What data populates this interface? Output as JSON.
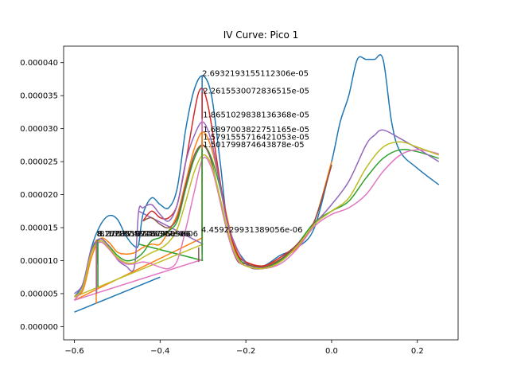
{
  "chart_data": {
    "type": "line",
    "title": "IV Curve: Pico 1",
    "xlabel": "",
    "ylabel": "",
    "xlim": [
      -0.625,
      0.295
    ],
    "ylim": [
      -2e-06,
      4.25e-05
    ],
    "grid": false,
    "legend": "none",
    "x_ticks": [
      "−0.6",
      "−0.4",
      "−0.2",
      "0.0",
      "0.2"
    ],
    "x_tick_values": [
      -0.6,
      -0.4,
      -0.2,
      0.0,
      0.2
    ],
    "y_ticks": [
      "0.000000",
      "0.000005",
      "0.000010",
      "0.000015",
      "0.000020",
      "0.000025",
      "0.000030",
      "0.000035",
      "0.000040"
    ],
    "y_tick_values": [
      0,
      5e-06,
      1e-05,
      1.5e-05,
      2e-05,
      2.5e-05,
      3e-05,
      3.5e-05,
      4e-05
    ],
    "series": [
      {
        "color": "#1f77b4",
        "x": [
          -0.6,
          -0.58,
          -0.56,
          -0.54,
          -0.52,
          -0.5,
          -0.48,
          -0.46,
          -0.45,
          -0.44,
          -0.42,
          -0.4,
          -0.38,
          -0.36,
          -0.34,
          -0.32,
          -0.3,
          -0.28,
          -0.26,
          -0.24,
          -0.2,
          -0.16,
          -0.12,
          -0.08,
          -0.04,
          0.0,
          0.02,
          0.04,
          0.06,
          0.08,
          0.1,
          0.12,
          0.14,
          0.16,
          0.2,
          0.25
        ],
        "y": [
          4.5e-06,
          6.5e-06,
          1.2e-05,
          1.53e-05,
          1.68e-05,
          1.63e-05,
          1.38e-05,
          1.22e-05,
          1.25e-05,
          1.7e-05,
          1.95e-05,
          1.85e-05,
          1.8e-05,
          2.1e-05,
          3e-05,
          3.6e-05,
          3.8e-05,
          3.5e-05,
          2.5e-05,
          1.5e-05,
          9.8e-06,
          9.2e-06,
          1.08e-05,
          1.2e-05,
          1.5e-05,
          2.5e-05,
          3.1e-05,
          3.5e-05,
          4.05e-05,
          4.05e-05,
          4.05e-05,
          4.05e-05,
          3.1e-05,
          2.65e-05,
          2.4e-05,
          2.15e-05
        ]
      },
      {
        "color": "#ff7f0e",
        "x": [
          -0.6,
          -0.58,
          -0.56,
          -0.54,
          -0.52,
          -0.5,
          -0.48,
          -0.46,
          -0.44,
          -0.42,
          -0.4,
          -0.38,
          -0.36,
          -0.34,
          -0.32,
          -0.3,
          -0.28,
          -0.26,
          -0.24,
          -0.22,
          -0.2,
          -0.16,
          -0.12,
          -0.08,
          -0.04,
          0.0
        ],
        "y": [
          4.5e-06,
          5.5e-06,
          1.05e-05,
          1.33e-05,
          1.28e-05,
          1.13e-05,
          1.1e-05,
          1.12e-05,
          1.2e-05,
          1.25e-05,
          1.25e-05,
          1.45e-05,
          1.7e-05,
          2.2e-05,
          2.7e-05,
          2.95e-05,
          2.7e-05,
          2.15e-05,
          1.55e-05,
          1.12e-05,
          9.8e-06,
          9.2e-06,
          1.02e-05,
          1.2e-05,
          1.6e-05,
          2.5e-05
        ]
      },
      {
        "color": "#2ca02c",
        "x": [
          -0.6,
          -0.58,
          -0.56,
          -0.54,
          -0.52,
          -0.5,
          -0.48,
          -0.46,
          -0.44,
          -0.42,
          -0.4,
          -0.38,
          -0.36,
          -0.34,
          -0.32,
          -0.3,
          -0.28,
          -0.26,
          -0.24,
          -0.22,
          -0.2,
          -0.16,
          -0.12,
          -0.08,
          -0.04,
          0.0,
          0.04,
          0.08,
          0.12,
          0.16,
          0.2,
          0.25
        ],
        "y": [
          4e-06,
          6e-06,
          1.15e-05,
          1.33e-05,
          1.23e-05,
          1.08e-05,
          1e-05,
          1.02e-05,
          1.12e-05,
          1.3e-05,
          1.35e-05,
          1.45e-05,
          1.6e-05,
          2.1e-05,
          2.55e-05,
          2.75e-05,
          2.55e-05,
          2.1e-05,
          1.5e-05,
          1.08e-05,
          9.5e-06,
          9e-06,
          1e-05,
          1.25e-05,
          1.58e-05,
          1.75e-05,
          1.9e-05,
          2.25e-05,
          2.55e-05,
          2.68e-05,
          2.65e-05,
          2.55e-05
        ]
      },
      {
        "color": "#d62728",
        "x": [
          -0.44,
          -0.42,
          -0.4,
          -0.38,
          -0.36,
          -0.34,
          -0.32,
          -0.31,
          -0.3,
          -0.29,
          -0.28,
          -0.26,
          -0.24,
          -0.22,
          -0.2,
          -0.16,
          -0.12,
          -0.08,
          -0.04,
          0.0
        ],
        "y": [
          1.6e-05,
          1.75e-05,
          1.65e-05,
          1.65e-05,
          1.85e-05,
          2.5e-05,
          3.25e-05,
          3.55e-05,
          3.6e-05,
          3.4e-05,
          3.05e-05,
          2.2e-05,
          1.5e-05,
          1.1e-05,
          9.8e-06,
          9.2e-06,
          1.05e-05,
          1.25e-05,
          1.6e-05,
          2.45e-05
        ]
      },
      {
        "color": "#9467bd",
        "x": [
          -0.6,
          -0.58,
          -0.56,
          -0.54,
          -0.52,
          -0.5,
          -0.48,
          -0.46,
          -0.45,
          -0.44,
          -0.42,
          -0.4,
          -0.38,
          -0.36,
          -0.34,
          -0.32,
          -0.3,
          -0.28,
          -0.26,
          -0.24,
          -0.2,
          -0.16,
          -0.12,
          -0.08,
          -0.04,
          0.0,
          0.04,
          0.08,
          0.1,
          0.12,
          0.16,
          0.2,
          0.25
        ],
        "y": [
          5e-06,
          6.5e-06,
          1.18e-05,
          1.33e-05,
          1.22e-05,
          1.02e-05,
          9.2e-06,
          9e-06,
          1.75e-05,
          1.8e-05,
          1.85e-05,
          1.7e-05,
          1.6e-05,
          1.85e-05,
          2.5e-05,
          2.9e-05,
          3.1e-05,
          2.8e-05,
          2.15e-05,
          1.5e-05,
          9.5e-06,
          8.8e-06,
          9.8e-06,
          1.22e-05,
          1.55e-05,
          1.85e-05,
          2.2e-05,
          2.75e-05,
          2.9e-05,
          2.98e-05,
          2.85e-05,
          2.7e-05,
          2.5e-05
        ]
      },
      {
        "color": "#8c564b",
        "x": [
          -0.44,
          -0.42,
          -0.4,
          -0.38,
          -0.36,
          -0.34,
          -0.32,
          -0.3,
          -0.28,
          -0.26,
          -0.24,
          -0.22,
          -0.2,
          -0.16,
          -0.12,
          -0.08,
          -0.04,
          0.0
        ],
        "y": [
          1.6e-05,
          1.65e-05,
          1.55e-05,
          1.5e-05,
          1.65e-05,
          2.15e-05,
          2.6e-05,
          2.75e-05,
          2.5e-05,
          1.9e-05,
          1.35e-05,
          1e-05,
          9.5e-06,
          9e-06,
          1.02e-05,
          1.25e-05,
          1.6e-05,
          2.45e-05
        ]
      },
      {
        "color": "#e377c2",
        "x": [
          -0.6,
          -0.58,
          -0.56,
          -0.54,
          -0.52,
          -0.5,
          -0.48,
          -0.46,
          -0.44,
          -0.42,
          -0.4,
          -0.38,
          -0.36,
          -0.34,
          -0.32,
          -0.3,
          -0.28,
          -0.26,
          -0.24,
          -0.22,
          -0.2,
          -0.16,
          -0.12,
          -0.08,
          -0.04,
          0.0,
          0.04,
          0.08,
          0.12,
          0.16,
          0.2,
          0.25
        ],
        "y": [
          4e-06,
          6e-06,
          1.12e-05,
          1.28e-05,
          1.18e-05,
          1.03e-05,
          9.5e-06,
          9.5e-06,
          9.8e-06,
          9.5e-06,
          9e-06,
          8.8e-06,
          1e-05,
          1.48e-05,
          2.05e-05,
          2.55e-05,
          2.4e-05,
          1.9e-05,
          1.35e-05,
          1.02e-05,
          9.2e-06,
          8.8e-06,
          9.5e-06,
          1.18e-05,
          1.52e-05,
          1.7e-05,
          1.8e-05,
          2e-05,
          2.35e-05,
          2.6e-05,
          2.68e-05,
          2.62e-05
        ]
      },
      {
        "color": "#bcbd22",
        "x": [
          -0.6,
          -0.58,
          -0.56,
          -0.54,
          -0.52,
          -0.5,
          -0.48,
          -0.46,
          -0.44,
          -0.42,
          -0.4,
          -0.38,
          -0.36,
          -0.34,
          -0.32,
          -0.3,
          -0.28,
          -0.26,
          -0.24,
          -0.22,
          -0.2,
          -0.16,
          -0.12,
          -0.08,
          -0.04,
          0.0,
          0.04,
          0.08,
          0.12,
          0.16,
          0.2,
          0.25
        ],
        "y": [
          4.5e-06,
          6e-06,
          1.12e-05,
          1.3e-05,
          1.2e-05,
          1.05e-05,
          9.7e-06,
          9.7e-06,
          1.05e-05,
          1.12e-05,
          1.18e-05,
          1.28e-05,
          1.48e-05,
          1.9e-05,
          2.35e-05,
          2.6e-05,
          2.45e-05,
          1.95e-05,
          1.4e-05,
          1.05e-05,
          9.2e-06,
          8.8e-06,
          9.8e-06,
          1.22e-05,
          1.55e-05,
          1.75e-05,
          1.95e-05,
          2.4e-05,
          2.72e-05,
          2.8e-05,
          2.72e-05,
          2.6e-05
        ]
      }
    ],
    "straight_lines": [
      {
        "color": "#1f77b4",
        "x": [
          -0.6,
          -0.4
        ],
        "y": [
          2.2e-06,
          7.5e-06
        ]
      },
      {
        "color": "#ff7f0e",
        "x": [
          -0.6,
          -0.3
        ],
        "y": [
          4e-06,
          1.35e-05
        ]
      },
      {
        "color": "#2ca02c",
        "x": [
          -0.45,
          -0.3
        ],
        "y": [
          1.25e-05,
          1e-05
        ]
      },
      {
        "color": "#bcbd22",
        "x": [
          -0.6,
          -0.3
        ],
        "y": [
          4.5e-06,
          1.25e-05
        ]
      },
      {
        "color": "#e377c2",
        "x": [
          -0.6,
          -0.3
        ],
        "y": [
          4e-06,
          1.02e-05
        ]
      },
      {
        "color": "#9467bd",
        "x": [
          -0.45,
          -0.3
        ],
        "y": [
          1.75e-05,
          1.25e-05
        ]
      }
    ],
    "vlines": [
      {
        "color": "#1f77b4",
        "x": -0.547,
        "y0": 9.5e-06,
        "y1": 1.32e-05
      },
      {
        "color": "#ff7f0e",
        "x": -0.549,
        "y0": 3.5e-06,
        "y1": 1.32e-05
      },
      {
        "color": "#2ca02c",
        "x": -0.545,
        "y0": 6e-06,
        "y1": 1.28e-05
      },
      {
        "color": "#9467bd",
        "x": -0.548,
        "y0": 5e-06,
        "y1": 1.28e-05
      },
      {
        "color": "#1f77b4",
        "x": -0.302,
        "y0": 1.1e-05,
        "y1": 3.8e-05
      },
      {
        "color": "#d62728",
        "x": -0.302,
        "y0": 1.35e-05,
        "y1": 3.55e-05
      },
      {
        "color": "#e377c2",
        "x": -0.302,
        "y0": 1.2e-05,
        "y1": 3.15e-05
      },
      {
        "color": "#9467bd",
        "x": -0.302,
        "y0": 1.2e-05,
        "y1": 2.9e-05
      },
      {
        "color": "#ff7f0e",
        "x": -0.302,
        "y0": 1.35e-05,
        "y1": 2.95e-05
      },
      {
        "color": "#bcbd22",
        "x": -0.302,
        "y0": 1.25e-05,
        "y1": 2.7e-05
      },
      {
        "color": "#2ca02c",
        "x": -0.302,
        "y0": 1e-05,
        "y1": 2.7e-05
      },
      {
        "color": "#8c564b",
        "x": -0.31,
        "y0": 9.8e-06,
        "y1": 1.2e-05
      }
    ],
    "annotations": [
      {
        "text": "2.6932193155112306e-05",
        "x": -0.302,
        "y": 3.8e-05
      },
      {
        "text": "2.2615530072836515e-05",
        "x": -0.3,
        "y": 3.53e-05
      },
      {
        "text": "1.8651029838136368e-05",
        "x": -0.3,
        "y": 3.17e-05
      },
      {
        "text": "1.6897003822751165e-05",
        "x": -0.3,
        "y": 2.95e-05
      },
      {
        "text": "1.5791555716421053e-05",
        "x": -0.3,
        "y": 2.83e-05
      },
      {
        "text": "1.501799874643878e-05",
        "x": -0.3,
        "y": 2.72e-05
      },
      {
        "text": "4.459229931389056e-06",
        "x": -0.304,
        "y": 1.43e-05
      },
      {
        "text": "8.167895991862505e-06",
        "x": -0.548,
        "y": 1.37e-05
      },
      {
        "text": "8.2763519246795e-06",
        "x": -0.546,
        "y": 1.37e-05
      },
      {
        "text": "8.1658742155347e-06",
        "x": -0.541,
        "y": 1.37e-05
      }
    ]
  }
}
